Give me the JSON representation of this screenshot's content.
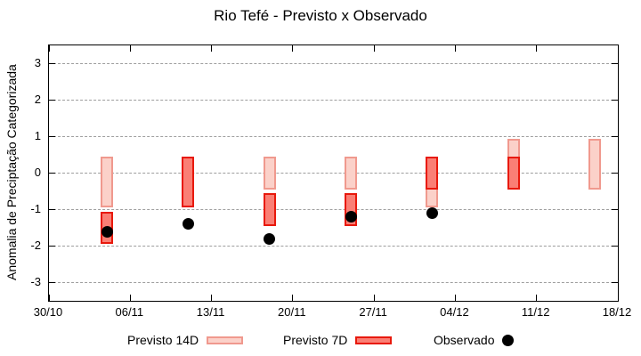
{
  "chart_data": {
    "type": "bar",
    "subtype": "range-bars-with-scatter",
    "title": "Rio Tefé - Previsto x Observado",
    "xlabel": "",
    "ylabel": "Anomalia de Preciptação Categorizada",
    "ylim": [
      -3.5,
      3.5
    ],
    "yticks": [
      3,
      2,
      1,
      0,
      -1,
      -2,
      -3
    ],
    "x_domain_days": [
      0,
      49
    ],
    "xticks": [
      {
        "day": 0,
        "label": "30/10"
      },
      {
        "day": 7,
        "label": "06/11"
      },
      {
        "day": 14,
        "label": "13/11"
      },
      {
        "day": 21,
        "label": "20/11"
      },
      {
        "day": 28,
        "label": "27/11"
      },
      {
        "day": 35,
        "label": "04/12"
      },
      {
        "day": 42,
        "label": "11/12"
      },
      {
        "day": 49,
        "label": "18/12"
      }
    ],
    "grid": "horizontal-dashed",
    "grid_color": "#9e9e9e",
    "axis_color": "#000000",
    "background": "#ffffff",
    "series": [
      {
        "id": "previsto14d",
        "name": "Previsto 14D",
        "type": "range-bar",
        "fill": "#fbd1c9",
        "border": "#f0998e",
        "bars": [
          {
            "day": 5,
            "date": "04/11",
            "from": 0.45,
            "to": -0.95
          },
          {
            "day": 19,
            "date": "18/11",
            "from": 0.45,
            "to": -0.45
          },
          {
            "day": 26,
            "date": "25/11",
            "from": 0.45,
            "to": -0.45
          },
          {
            "day": 33,
            "date": "02/12",
            "from": 0.45,
            "to": -0.95
          },
          {
            "day": 40,
            "date": "09/12",
            "from": 0.95,
            "to": -0.45
          },
          {
            "day": 47,
            "date": "16/12",
            "from": 0.95,
            "to": -0.45
          }
        ]
      },
      {
        "id": "previsto7d",
        "name": "Previsto 7D",
        "type": "range-bar",
        "fill": "#fa7f75",
        "border": "#e8190c",
        "bars": [
          {
            "day": 5,
            "date": "04/11",
            "from": -1.05,
            "to": -1.95
          },
          {
            "day": 12,
            "date": "11/11",
            "from": 0.45,
            "to": -0.95
          },
          {
            "day": 19,
            "date": "18/11",
            "from": -0.55,
            "to": -1.45
          },
          {
            "day": 26,
            "date": "25/11",
            "from": -0.55,
            "to": -1.45
          },
          {
            "day": 33,
            "date": "02/12",
            "from": 0.45,
            "to": -0.45
          },
          {
            "day": 40,
            "date": "09/12",
            "from": 0.45,
            "to": -0.45
          }
        ]
      },
      {
        "id": "observado",
        "name": "Observado",
        "type": "scatter",
        "color": "#000000",
        "points": [
          {
            "day": 5,
            "date": "04/11",
            "value": -1.6
          },
          {
            "day": 12,
            "date": "11/11",
            "value": -1.4
          },
          {
            "day": 19,
            "date": "18/11",
            "value": -1.8
          },
          {
            "day": 26,
            "date": "25/11",
            "value": -1.2
          },
          {
            "day": 33,
            "date": "02/12",
            "value": -1.1
          }
        ]
      }
    ],
    "legend": {
      "position": "bottom-center",
      "entries": [
        {
          "label": "Previsto 14D",
          "series": "previsto14d",
          "marker": "box"
        },
        {
          "label": "Previsto 7D",
          "series": "previsto7d",
          "marker": "box"
        },
        {
          "label": "Observado",
          "series": "observado",
          "marker": "dot"
        }
      ]
    }
  }
}
